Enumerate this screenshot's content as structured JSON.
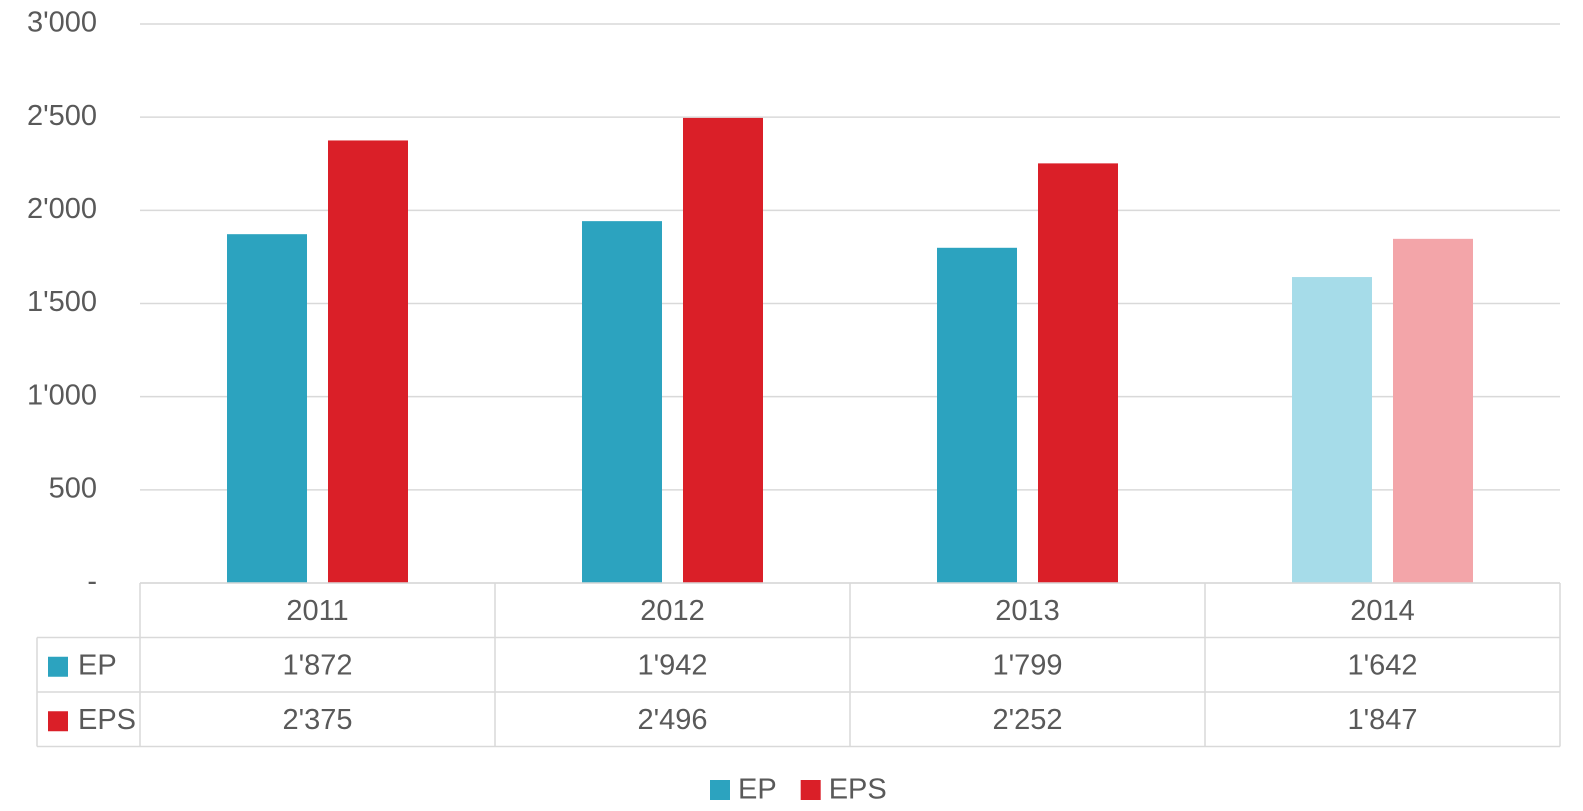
{
  "chart_data": {
    "type": "bar",
    "categories": [
      "2011",
      "2012",
      "2013",
      "2014"
    ],
    "series": [
      {
        "name": "EP",
        "color": "#2ca3bf",
        "colors": [
          "#2ca3bf",
          "#2ca3bf",
          "#2ca3bf",
          "#a6dce9"
        ],
        "values": [
          1872,
          1942,
          1799,
          1642
        ],
        "value_labels": [
          "1'872",
          "1'942",
          "1'799",
          "1'642"
        ]
      },
      {
        "name": "EPS",
        "color": "#da1f28",
        "colors": [
          "#da1f28",
          "#da1f28",
          "#da1f28",
          "#f3a5a9"
        ],
        "values": [
          2375,
          2496,
          2252,
          1847
        ],
        "value_labels": [
          "2'375",
          "2'496",
          "2'252",
          "1'847"
        ]
      }
    ],
    "ylim": [
      0,
      3000
    ],
    "yticks": [
      {
        "value": 0,
        "label": "-"
      },
      500,
      {
        "value": 1000,
        "label": "1'000"
      },
      {
        "value": 1500,
        "label": "1'500"
      },
      {
        "value": 2000,
        "label": "2'000"
      },
      {
        "value": 2500,
        "label": "2'500"
      },
      {
        "value": 3000,
        "label": "3'000"
      }
    ],
    "grid": true,
    "legend": "bottom",
    "data_table": true
  }
}
